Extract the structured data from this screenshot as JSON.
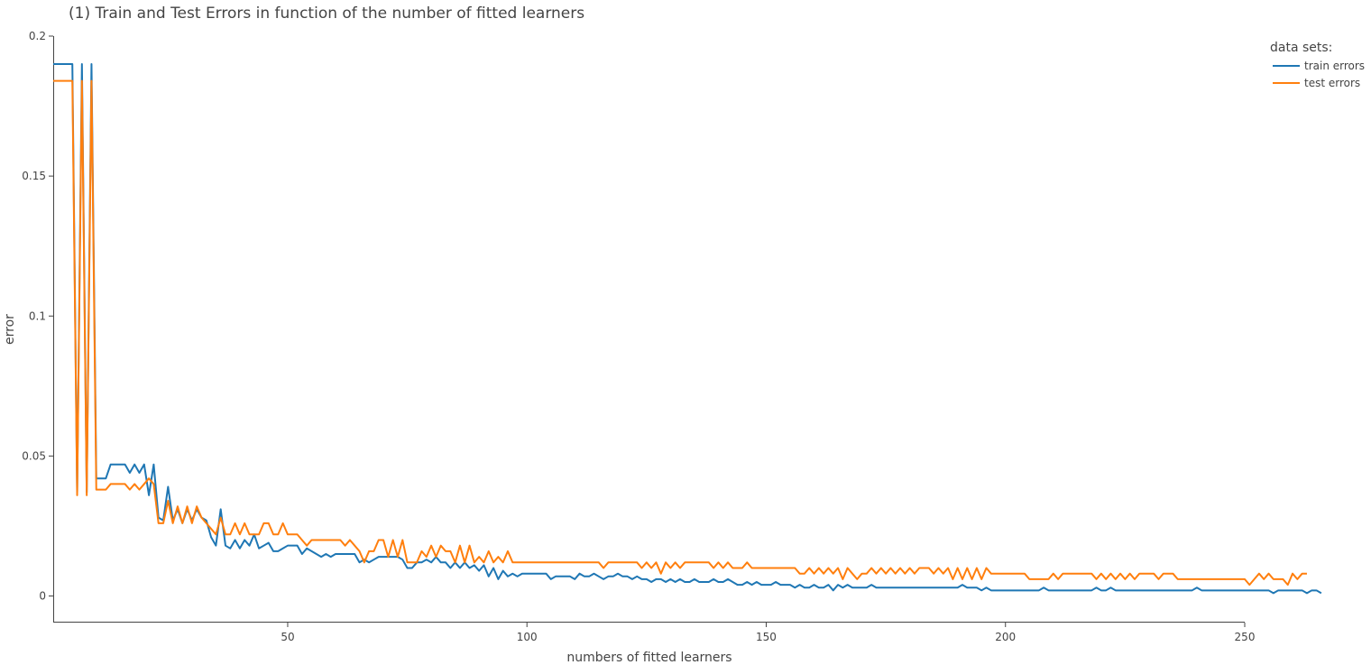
{
  "chart_data": {
    "type": "line",
    "title": "(1) Train and Test Errors in function of the number of fitted learners",
    "xlabel": "numbers of fitted learners",
    "ylabel": "error",
    "xlim": [
      1,
      250
    ],
    "ylim": [
      -0.0095,
      0.2
    ],
    "x_ticks": [
      50,
      100,
      150,
      200,
      250
    ],
    "y_ticks": [
      0,
      0.05,
      0.1,
      0.15,
      0.2
    ],
    "y_tick_labels": [
      "0",
      "0.05",
      "0.1",
      "0.15",
      "0.2"
    ],
    "legend": {
      "title": "data sets:",
      "placement": "top-right"
    },
    "x_start": 1,
    "series": [
      {
        "name": "train errors",
        "color": "#1f77b4",
        "values": [
          0.19,
          0.19,
          0.19,
          0.19,
          0.19,
          0.037,
          0.19,
          0.037,
          0.19,
          0.042,
          0.042,
          0.042,
          0.047,
          0.047,
          0.047,
          0.047,
          0.044,
          0.047,
          0.044,
          0.047,
          0.036,
          0.047,
          0.028,
          0.027,
          0.039,
          0.027,
          0.031,
          0.026,
          0.031,
          0.027,
          0.031,
          0.028,
          0.027,
          0.021,
          0.018,
          0.031,
          0.018,
          0.017,
          0.02,
          0.017,
          0.02,
          0.018,
          0.022,
          0.017,
          0.018,
          0.019,
          0.016,
          0.016,
          0.017,
          0.018,
          0.018,
          0.018,
          0.015,
          0.017,
          0.016,
          0.015,
          0.014,
          0.015,
          0.014,
          0.015,
          0.015,
          0.015,
          0.015,
          0.015,
          0.012,
          0.013,
          0.012,
          0.013,
          0.014,
          0.014,
          0.014,
          0.014,
          0.014,
          0.013,
          0.01,
          0.01,
          0.012,
          0.012,
          0.013,
          0.012,
          0.014,
          0.012,
          0.012,
          0.01,
          0.012,
          0.01,
          0.012,
          0.01,
          0.011,
          0.009,
          0.011,
          0.007,
          0.01,
          0.006,
          0.009,
          0.007,
          0.008,
          0.007,
          0.008,
          0.008,
          0.008,
          0.008,
          0.008,
          0.008,
          0.006,
          0.007,
          0.007,
          0.007,
          0.007,
          0.006,
          0.008,
          0.007,
          0.007,
          0.008,
          0.007,
          0.006,
          0.007,
          0.007,
          0.008,
          0.007,
          0.007,
          0.006,
          0.007,
          0.006,
          0.006,
          0.005,
          0.006,
          0.006,
          0.005,
          0.006,
          0.005,
          0.006,
          0.005,
          0.005,
          0.006,
          0.005,
          0.005,
          0.005,
          0.006,
          0.005,
          0.005,
          0.006,
          0.005,
          0.004,
          0.004,
          0.005,
          0.004,
          0.005,
          0.004,
          0.004,
          0.004,
          0.005,
          0.004,
          0.004,
          0.004,
          0.003,
          0.004,
          0.003,
          0.003,
          0.004,
          0.003,
          0.003,
          0.004,
          0.002,
          0.004,
          0.003,
          0.004,
          0.003,
          0.003,
          0.003,
          0.003,
          0.004,
          0.003,
          0.003,
          0.003,
          0.003,
          0.003,
          0.003,
          0.003,
          0.003,
          0.003,
          0.003,
          0.003,
          0.003,
          0.003,
          0.003,
          0.003,
          0.003,
          0.003,
          0.003,
          0.004,
          0.003,
          0.003,
          0.003,
          0.002,
          0.003,
          0.002,
          0.002,
          0.002,
          0.002,
          0.002,
          0.002,
          0.002,
          0.002,
          0.002,
          0.002,
          0.002,
          0.003,
          0.002,
          0.002,
          0.002,
          0.002,
          0.002,
          0.002,
          0.002,
          0.002,
          0.002,
          0.002,
          0.003,
          0.002,
          0.002,
          0.003,
          0.002,
          0.002,
          0.002,
          0.002,
          0.002,
          0.002,
          0.002,
          0.002,
          0.002,
          0.002,
          0.002,
          0.002,
          0.002,
          0.002,
          0.002,
          0.002,
          0.002,
          0.003,
          0.002,
          0.002,
          0.002,
          0.002,
          0.002,
          0.002,
          0.002,
          0.002,
          0.002,
          0.002,
          0.002,
          0.002,
          0.002,
          0.002,
          0.002,
          0.001,
          0.002,
          0.002,
          0.002,
          0.002,
          0.002,
          0.002,
          0.001,
          0.002,
          0.002,
          0.001
        ]
      },
      {
        "name": "test errors",
        "color": "#ff7f0e",
        "values": [
          0.184,
          0.184,
          0.184,
          0.184,
          0.184,
          0.036,
          0.184,
          0.036,
          0.184,
          0.038,
          0.038,
          0.038,
          0.04,
          0.04,
          0.04,
          0.04,
          0.038,
          0.04,
          0.038,
          0.04,
          0.042,
          0.04,
          0.026,
          0.026,
          0.034,
          0.026,
          0.032,
          0.026,
          0.032,
          0.026,
          0.032,
          0.028,
          0.026,
          0.024,
          0.022,
          0.028,
          0.022,
          0.022,
          0.026,
          0.022,
          0.026,
          0.022,
          0.022,
          0.022,
          0.026,
          0.026,
          0.022,
          0.022,
          0.026,
          0.022,
          0.022,
          0.022,
          0.02,
          0.018,
          0.02,
          0.02,
          0.02,
          0.02,
          0.02,
          0.02,
          0.02,
          0.018,
          0.02,
          0.018,
          0.016,
          0.012,
          0.016,
          0.016,
          0.02,
          0.02,
          0.014,
          0.02,
          0.014,
          0.02,
          0.012,
          0.012,
          0.012,
          0.016,
          0.014,
          0.018,
          0.014,
          0.018,
          0.016,
          0.016,
          0.012,
          0.018,
          0.012,
          0.018,
          0.012,
          0.014,
          0.012,
          0.016,
          0.012,
          0.014,
          0.012,
          0.016,
          0.012,
          0.012,
          0.012,
          0.012,
          0.012,
          0.012,
          0.012,
          0.012,
          0.012,
          0.012,
          0.012,
          0.012,
          0.012,
          0.012,
          0.012,
          0.012,
          0.012,
          0.012,
          0.012,
          0.01,
          0.012,
          0.012,
          0.012,
          0.012,
          0.012,
          0.012,
          0.012,
          0.01,
          0.012,
          0.01,
          0.012,
          0.008,
          0.012,
          0.01,
          0.012,
          0.01,
          0.012,
          0.012,
          0.012,
          0.012,
          0.012,
          0.012,
          0.01,
          0.012,
          0.01,
          0.012,
          0.01,
          0.01,
          0.01,
          0.012,
          0.01,
          0.01,
          0.01,
          0.01,
          0.01,
          0.01,
          0.01,
          0.01,
          0.01,
          0.01,
          0.008,
          0.008,
          0.01,
          0.008,
          0.01,
          0.008,
          0.01,
          0.008,
          0.01,
          0.006,
          0.01,
          0.008,
          0.006,
          0.008,
          0.008,
          0.01,
          0.008,
          0.01,
          0.008,
          0.01,
          0.008,
          0.01,
          0.008,
          0.01,
          0.008,
          0.01,
          0.01,
          0.01,
          0.008,
          0.01,
          0.008,
          0.01,
          0.006,
          0.01,
          0.006,
          0.01,
          0.006,
          0.01,
          0.006,
          0.01,
          0.008,
          0.008,
          0.008,
          0.008,
          0.008,
          0.008,
          0.008,
          0.008,
          0.006,
          0.006,
          0.006,
          0.006,
          0.006,
          0.008,
          0.006,
          0.008,
          0.008,
          0.008,
          0.008,
          0.008,
          0.008,
          0.008,
          0.006,
          0.008,
          0.006,
          0.008,
          0.006,
          0.008,
          0.006,
          0.008,
          0.006,
          0.008,
          0.008,
          0.008,
          0.008,
          0.006,
          0.008,
          0.008,
          0.008,
          0.006,
          0.006,
          0.006,
          0.006,
          0.006,
          0.006,
          0.006,
          0.006,
          0.006,
          0.006,
          0.006,
          0.006,
          0.006,
          0.006,
          0.006,
          0.004,
          0.006,
          0.008,
          0.006,
          0.008,
          0.006,
          0.006,
          0.006,
          0.004,
          0.008,
          0.006,
          0.008,
          0.008
        ]
      }
    ]
  }
}
